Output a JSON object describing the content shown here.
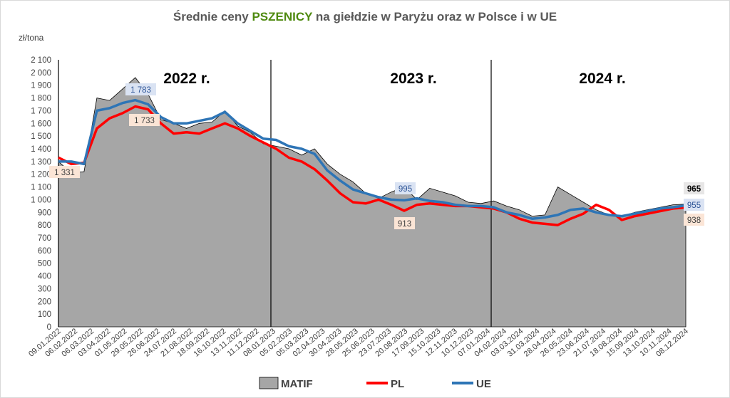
{
  "chart_data": {
    "type": "area+line",
    "title_parts": [
      "Średnie ceny ",
      "PSZENICY",
      " na giełdzie w Paryżu oraz w Polsce i w UE"
    ],
    "ylabel": "zł/tona",
    "ylim": [
      0,
      2100
    ],
    "y_ticks": [
      "0",
      "100",
      "200",
      "300",
      "400",
      "500",
      "600",
      "700",
      "800",
      "900",
      "1 000",
      "1 100",
      "1 200",
      "1 300",
      "1 400",
      "1 500",
      "1 600",
      "1 700",
      "1 800",
      "1 900",
      "2 000",
      "2 100"
    ],
    "x_labels": [
      "09.01.2022",
      "06.02.2022",
      "06.03.2022",
      "03.04.2022",
      "01.05.2022",
      "29.05.2022",
      "26.06.2022",
      "24.07.2022",
      "21.08.2022",
      "18.09.2022",
      "16.10.2022",
      "13.11.2022",
      "11.12.2022",
      "08.01.2023",
      "05.02.2023",
      "05.03.2023",
      "02.04.2023",
      "30.04.2023",
      "28.05.2023",
      "25.06.2023",
      "23.07.2023",
      "20.08.2023",
      "17.09.2023",
      "15.10.2023",
      "12.11.2023",
      "10.12.2023",
      "07.01.2024",
      "04.02.2024",
      "03.03.2024",
      "31.03.2024",
      "28.04.2024",
      "26.05.2024",
      "23.06.2024",
      "21.07.2024",
      "18.08.2024",
      "15.09.2024",
      "13.10.2024",
      "10.11.2024",
      "08.12.2024"
    ],
    "year_labels": [
      "2022 r.",
      "2023 r.",
      "2024 r."
    ],
    "annotations": [
      {
        "series": "PL",
        "x_index": 0,
        "text": "1 331"
      },
      {
        "series": "UE",
        "x_index": 5,
        "text": "1 783"
      },
      {
        "series": "PL",
        "x_index": 5,
        "text": "1 733"
      },
      {
        "series": "UE",
        "x_index": 20,
        "text": "995"
      },
      {
        "series": "PL",
        "x_index": 20,
        "text": "913"
      },
      {
        "series": "MATIF",
        "x_index": 38,
        "text": "965"
      },
      {
        "series": "UE",
        "x_index": 38,
        "text": "955"
      },
      {
        "series": "PL",
        "x_index": 38,
        "text": "938"
      }
    ],
    "series": [
      {
        "name": "MATIF",
        "color": "#a6a6a6",
        "values": [
          1300,
          1210,
          1220,
          1800,
          1780,
          1870,
          1960,
          1830,
          1630,
          1600,
          1560,
          1600,
          1610,
          1700,
          1580,
          1530,
          1440,
          1420,
          1400,
          1350,
          1400,
          1280,
          1200,
          1140,
          1050,
          1010,
          1060,
          1100,
          1000,
          1090,
          1060,
          1030,
          980,
          970,
          990,
          950,
          920,
          870,
          880,
          1100,
          1040,
          980,
          920,
          880,
          870,
          900,
          920,
          940,
          960,
          965
        ]
      },
      {
        "name": "PL",
        "color": "#ff0000",
        "values": [
          1331,
          1280,
          1290,
          1560,
          1640,
          1680,
          1733,
          1710,
          1600,
          1520,
          1530,
          1520,
          1560,
          1600,
          1560,
          1500,
          1450,
          1400,
          1330,
          1300,
          1240,
          1150,
          1050,
          980,
          970,
          1000,
          960,
          913,
          960,
          970,
          960,
          950,
          950,
          940,
          930,
          900,
          850,
          820,
          810,
          800,
          850,
          890,
          960,
          920,
          840,
          870,
          890,
          910,
          930,
          938
        ]
      },
      {
        "name": "UE",
        "color": "#2e75b6",
        "values": [
          1300,
          1300,
          1280,
          1700,
          1720,
          1760,
          1783,
          1750,
          1650,
          1600,
          1600,
          1620,
          1640,
          1690,
          1600,
          1540,
          1480,
          1470,
          1420,
          1400,
          1360,
          1230,
          1150,
          1080,
          1050,
          1020,
          1000,
          995,
          1010,
          990,
          980,
          960,
          950,
          950,
          940,
          900,
          880,
          850,
          860,
          880,
          920,
          930,
          900,
          880,
          870,
          890,
          910,
          930,
          940,
          955
        ]
      }
    ]
  },
  "legend": [
    {
      "name": "MATIF",
      "color": "#a6a6a6"
    },
    {
      "name": "PL",
      "color": "#ff0000"
    },
    {
      "name": "UE",
      "color": "#2e75b6"
    }
  ]
}
